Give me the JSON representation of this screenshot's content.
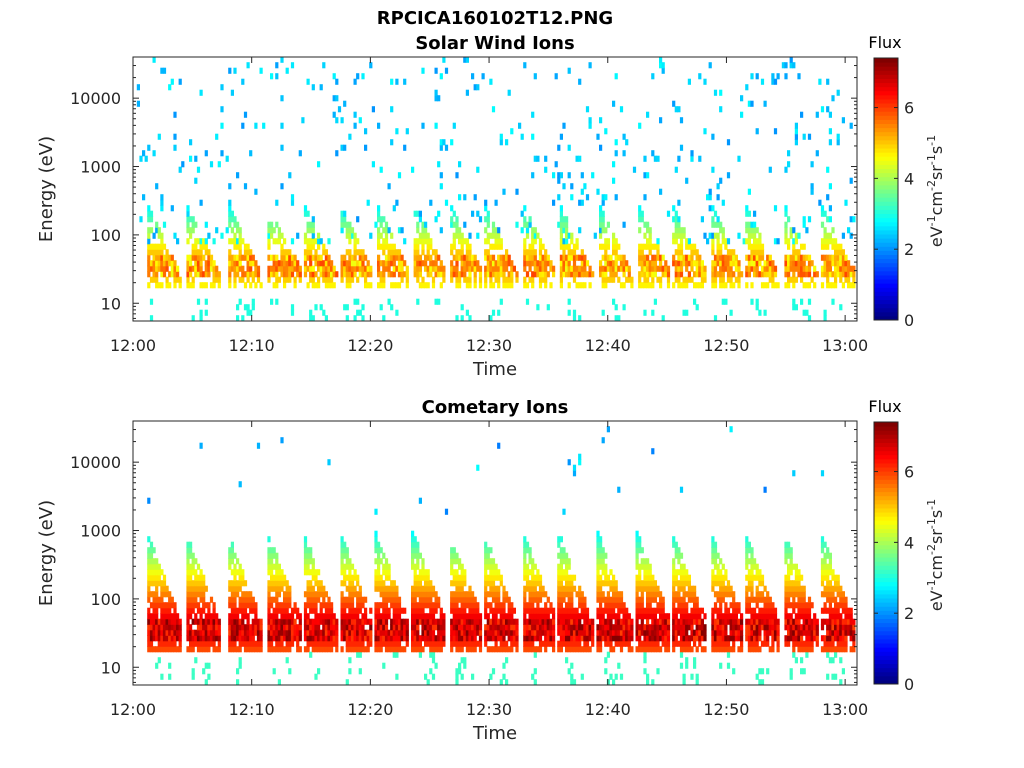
{
  "figure": {
    "title": "RPCICA160102T12.PNG"
  },
  "chart_data": [
    {
      "type": "heatmap",
      "title": "Solar Wind Ions",
      "xlabel": "Time",
      "ylabel": "Energy (eV)",
      "x_ticks": [
        "12:00",
        "12:10",
        "12:20",
        "12:30",
        "12:40",
        "12:50",
        "13:00"
      ],
      "y_ticks": [
        "10",
        "100",
        "1000",
        "10000"
      ],
      "y_scale": "log",
      "ylim": [
        5.5,
        40000
      ],
      "xlim": [
        "12:00",
        "13:01"
      ],
      "colorbar": {
        "title": "Flux",
        "label": "eV-1cm-2sr-1s-1",
        "ticks": [
          "0",
          "2",
          "4",
          "6"
        ],
        "range": [
          0,
          7.4
        ],
        "colormap": "jet"
      },
      "grid": false,
      "pulse_times_min": [
        2.3,
        5.6,
        9.1,
        12.5,
        15.5,
        18.6,
        21.6,
        24.7,
        27.8,
        30.7,
        34.0,
        37.0,
        40.3,
        43.6,
        46.6,
        49.8,
        52.7,
        56.0,
        59.1
      ],
      "description": "Sparse low-flux (2-3) speckle at 500-20000 eV; recurring dispersed bursts near 20-300 eV peaking at ~5-6 near 30-50 eV"
    },
    {
      "type": "heatmap",
      "title": "Cometary Ions",
      "xlabel": "Time",
      "ylabel": "Energy (eV)",
      "x_ticks": [
        "12:00",
        "12:10",
        "12:20",
        "12:30",
        "12:40",
        "12:50",
        "13:00"
      ],
      "y_ticks": [
        "10",
        "100",
        "1000",
        "10000"
      ],
      "y_scale": "log",
      "ylim": [
        5.5,
        40000
      ],
      "xlim": [
        "12:00",
        "13:01"
      ],
      "colorbar": {
        "title": "Flux",
        "label": "eV-1cm-2sr-1s-1",
        "ticks": [
          "0",
          "2",
          "4",
          "6"
        ],
        "range": [
          0,
          7.4
        ],
        "colormap": "jet"
      },
      "grid": false,
      "pulse_times_min": [
        2.3,
        5.6,
        9.1,
        12.5,
        15.5,
        18.6,
        21.6,
        24.7,
        27.8,
        30.7,
        34.0,
        37.0,
        40.3,
        43.6,
        46.6,
        49.8,
        52.7,
        56.0,
        59.1
      ],
      "description": "Periodic dispersed bursts 15-1000 eV with peak flux ~7 near 30-50 eV and 4-5 near 80-200 eV; sparse high-energy streaks above 2000 eV"
    }
  ]
}
